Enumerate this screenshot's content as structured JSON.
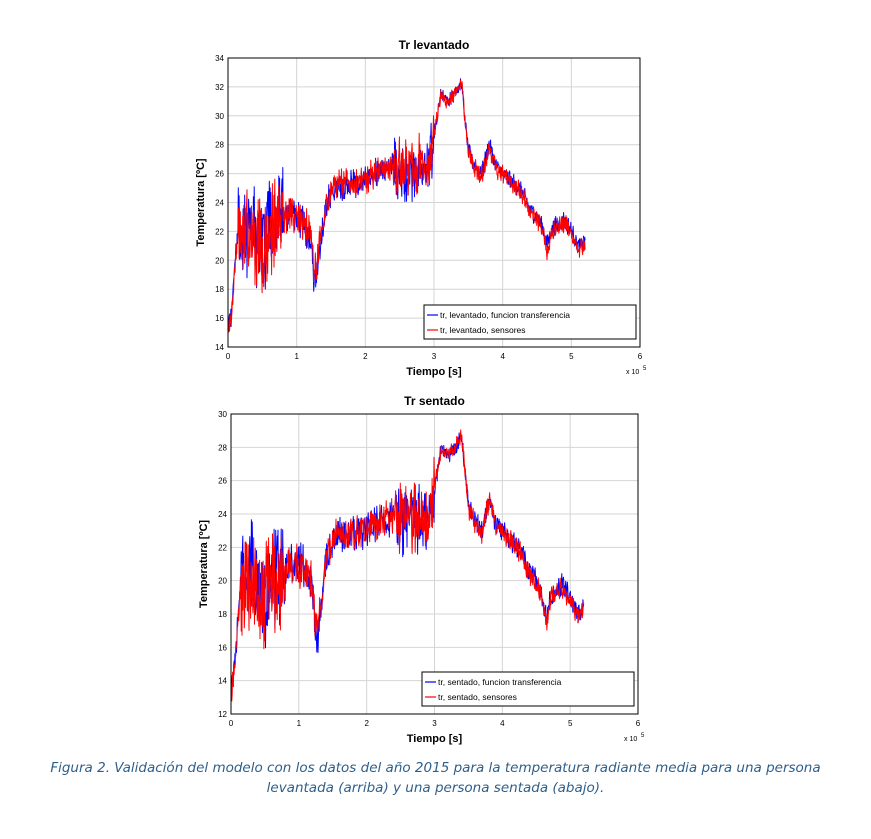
{
  "chart_data": [
    {
      "type": "line",
      "title": "Tr levantado",
      "xlabel": "Tiempo [s]",
      "ylabel": "Temperatura [ºC]",
      "x_exponent_label": "x 10",
      "x_exponent_power": "5",
      "xlim": [
        0,
        6
      ],
      "ylim": [
        14,
        34
      ],
      "xticks": [
        "0",
        "1",
        "2",
        "3",
        "4",
        "5",
        "6"
      ],
      "yticks": [
        "14",
        "16",
        "18",
        "20",
        "22",
        "24",
        "26",
        "28",
        "30",
        "32",
        "34"
      ],
      "grid": true,
      "legend_position": "bottom-right",
      "series": [
        {
          "name": "tr, levantado, funcion transferencia",
          "color": "#0000ff",
          "x": [
            0.0,
            0.05,
            0.1,
            0.15,
            0.2,
            0.3,
            0.4,
            0.5,
            0.6,
            0.7,
            0.8,
            0.9,
            1.0,
            1.1,
            1.2,
            1.25,
            1.3,
            1.4,
            1.5,
            1.6,
            1.8,
            2.0,
            2.2,
            2.4,
            2.6,
            2.8,
            2.9,
            3.0,
            3.1,
            3.2,
            3.3,
            3.4,
            3.5,
            3.6,
            3.7,
            3.8,
            3.9,
            4.0,
            4.1,
            4.2,
            4.3,
            4.4,
            4.5,
            4.6,
            4.65,
            4.7,
            4.8,
            4.9,
            5.0,
            5.1,
            5.2
          ],
          "y": [
            15.5,
            16.5,
            19.5,
            22.5,
            21.0,
            22.5,
            21.5,
            21.0,
            22.0,
            22.5,
            23.0,
            23.5,
            23.0,
            22.8,
            21.5,
            18.0,
            19.5,
            23.0,
            24.8,
            25.2,
            25.2,
            25.5,
            26.2,
            26.5,
            26.0,
            26.5,
            26.0,
            28.5,
            31.5,
            31.0,
            31.5,
            32.2,
            27.5,
            26.5,
            26.0,
            28.0,
            26.5,
            26.0,
            25.5,
            25.2,
            24.5,
            23.5,
            23.0,
            22.0,
            21.0,
            22.0,
            22.5,
            22.8,
            22.0,
            21.0,
            21.2
          ]
        },
        {
          "name": "tr, levantado, sensores",
          "color": "#ff0000",
          "x": [
            0.0,
            0.05,
            0.1,
            0.15,
            0.2,
            0.3,
            0.4,
            0.5,
            0.6,
            0.7,
            0.8,
            0.9,
            1.0,
            1.1,
            1.2,
            1.25,
            1.3,
            1.4,
            1.5,
            1.6,
            1.8,
            2.0,
            2.2,
            2.4,
            2.6,
            2.8,
            2.9,
            3.0,
            3.1,
            3.2,
            3.3,
            3.4,
            3.5,
            3.6,
            3.7,
            3.8,
            3.9,
            4.0,
            4.1,
            4.2,
            4.3,
            4.4,
            4.5,
            4.6,
            4.65,
            4.7,
            4.8,
            4.9,
            5.0,
            5.1,
            5.2
          ],
          "y": [
            15.2,
            16.3,
            19.3,
            22.2,
            20.8,
            22.3,
            21.3,
            20.8,
            21.8,
            22.3,
            22.8,
            23.2,
            22.8,
            22.6,
            21.8,
            19.0,
            20.0,
            23.2,
            24.9,
            25.3,
            25.3,
            25.6,
            26.3,
            26.6,
            26.2,
            26.7,
            26.3,
            28.7,
            31.4,
            30.9,
            31.6,
            32.3,
            27.4,
            26.4,
            25.9,
            27.8,
            26.4,
            25.9,
            25.4,
            25.1,
            24.4,
            23.4,
            22.9,
            21.8,
            20.5,
            21.8,
            22.3,
            22.6,
            21.8,
            20.8,
            21.1
          ]
        }
      ]
    },
    {
      "type": "line",
      "title": "Tr sentado",
      "xlabel": "Tiempo [s]",
      "ylabel": "Temperatura [ºC]",
      "x_exponent_label": "x 10",
      "x_exponent_power": "5",
      "xlim": [
        0,
        6
      ],
      "ylim": [
        12,
        30
      ],
      "xticks": [
        "0",
        "1",
        "2",
        "3",
        "4",
        "5",
        "6"
      ],
      "yticks": [
        "12",
        "14",
        "16",
        "18",
        "20",
        "22",
        "24",
        "26",
        "28",
        "30"
      ],
      "grid": true,
      "legend_position": "bottom-right",
      "series": [
        {
          "name": "tr, sentado, funcion transferencia",
          "color": "#0000ff",
          "x": [
            0.0,
            0.05,
            0.1,
            0.15,
            0.2,
            0.3,
            0.4,
            0.5,
            0.6,
            0.7,
            0.8,
            0.9,
            1.0,
            1.1,
            1.2,
            1.25,
            1.3,
            1.4,
            1.5,
            1.6,
            1.8,
            2.0,
            2.2,
            2.4,
            2.6,
            2.8,
            2.9,
            3.0,
            3.1,
            3.2,
            3.3,
            3.4,
            3.5,
            3.6,
            3.7,
            3.8,
            3.9,
            4.0,
            4.1,
            4.2,
            4.3,
            4.4,
            4.5,
            4.6,
            4.65,
            4.7,
            4.8,
            4.9,
            5.0,
            5.1,
            5.2
          ],
          "y": [
            13.5,
            14.8,
            17.5,
            20.5,
            19.0,
            20.5,
            19.5,
            19.0,
            20.0,
            20.5,
            21.0,
            21.3,
            21.0,
            20.8,
            19.5,
            16.0,
            17.5,
            21.0,
            22.5,
            22.8,
            22.8,
            23.0,
            23.5,
            23.8,
            23.3,
            23.8,
            23.3,
            25.5,
            28.0,
            27.5,
            28.0,
            28.6,
            24.5,
            23.5,
            23.0,
            25.0,
            23.5,
            23.0,
            22.5,
            22.2,
            21.5,
            20.5,
            20.0,
            19.0,
            18.0,
            19.0,
            19.5,
            19.8,
            19.0,
            18.0,
            18.5
          ]
        },
        {
          "name": "tr, sentado, sensores",
          "color": "#ff0000",
          "x": [
            0.0,
            0.05,
            0.1,
            0.15,
            0.2,
            0.3,
            0.4,
            0.5,
            0.6,
            0.7,
            0.8,
            0.9,
            1.0,
            1.1,
            1.2,
            1.25,
            1.3,
            1.4,
            1.5,
            1.6,
            1.8,
            2.0,
            2.2,
            2.4,
            2.6,
            2.8,
            2.9,
            3.0,
            3.1,
            3.2,
            3.3,
            3.4,
            3.5,
            3.6,
            3.7,
            3.8,
            3.9,
            4.0,
            4.1,
            4.2,
            4.3,
            4.4,
            4.5,
            4.6,
            4.65,
            4.7,
            4.8,
            4.9,
            5.0,
            5.1,
            5.2
          ],
          "y": [
            13.2,
            14.6,
            17.3,
            20.2,
            18.8,
            20.3,
            19.3,
            18.8,
            19.8,
            20.3,
            20.8,
            21.0,
            20.8,
            20.6,
            19.7,
            17.0,
            17.8,
            21.2,
            22.6,
            22.9,
            22.9,
            23.1,
            23.6,
            23.9,
            23.5,
            24.0,
            23.5,
            25.7,
            27.9,
            27.4,
            28.1,
            28.7,
            24.4,
            23.4,
            22.9,
            24.8,
            23.4,
            22.9,
            22.4,
            22.1,
            21.4,
            20.4,
            19.9,
            18.8,
            17.2,
            18.8,
            19.3,
            19.6,
            18.8,
            17.8,
            18.4
          ]
        }
      ]
    }
  ],
  "caption": {
    "line1": "Figura 2. Validación del modelo con los datos del año 2015 para la temperatura radiante media para una persona",
    "line2": "levantada (arriba) y una persona sentada (abajo)."
  }
}
